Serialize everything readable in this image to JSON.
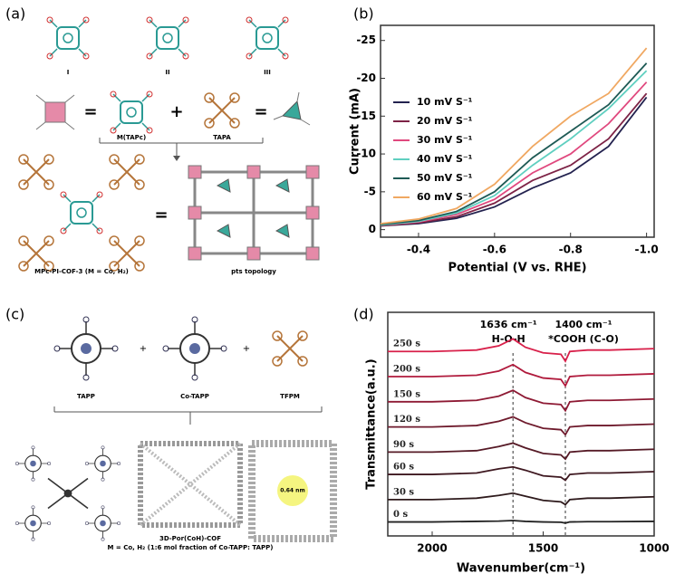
{
  "diagrams": {
    "a": {
      "label": "(a)",
      "monomers": [
        "I",
        "II",
        "III"
      ],
      "eq1": "=",
      "plus": "+",
      "eq2": "=",
      "node1": "M(TAPc)",
      "node2": "TAPA",
      "eq3": "=",
      "product": "MPc-PI-COF-3 (M = Co, H₂)",
      "topology": "pts topology"
    },
    "c": {
      "label": "(c)",
      "monomers": [
        "TAPP",
        "Co-TAPP",
        "TFPM"
      ],
      "plus1": "+",
      "plus2": "+",
      "pore": "0.64 nm",
      "product": "3D-Por(CoH)-COF",
      "note": "M = Co, H₂ (1:6 mol fraction of Co-TAPP: TAPP)"
    }
  },
  "chart_data": [
    {
      "type": "line",
      "panel_label": "(b)",
      "xlabel": "Potential (V vs. RHE)",
      "ylabel": "Current (mA)",
      "x": [
        -0.3,
        -0.4,
        -0.5,
        -0.6,
        -0.7,
        -0.8,
        -0.9,
        -1.0
      ],
      "xlim": [
        -0.3,
        -1.02
      ],
      "xticks": [
        -0.4,
        -0.6,
        -0.8,
        {
          "value": -1,
          "label": "-1.0"
        }
      ],
      "ylim": [
        1,
        -27
      ],
      "yticks": [
        0,
        -5,
        -10,
        -15,
        -20,
        -25
      ],
      "legend": "upper left",
      "series": [
        {
          "name": "10 mV S⁻¹",
          "color": "#23224f",
          "values": [
            -0.5,
            -0.8,
            -1.5,
            -3,
            -5.5,
            -7.5,
            -11,
            -17.5
          ]
        },
        {
          "name": "20 mV S⁻¹",
          "color": "#7d2346",
          "values": [
            -0.5,
            -0.9,
            -1.7,
            -3.5,
            -6.5,
            -8.5,
            -12,
            -18
          ]
        },
        {
          "name": "30 mV S⁻¹",
          "color": "#e0487e",
          "values": [
            -0.6,
            -1,
            -2,
            -4,
            -7.5,
            -10,
            -14,
            -19.5
          ]
        },
        {
          "name": "40 mV S⁻¹",
          "color": "#5fcfc0",
          "values": [
            -0.6,
            -1.1,
            -2.2,
            -4.5,
            -8.5,
            -12,
            -16,
            -21
          ]
        },
        {
          "name": "50 mV S⁻¹",
          "color": "#1e5a55",
          "values": [
            -0.7,
            -1.2,
            -2.4,
            -5,
            -9.5,
            -13,
            -16.5,
            -22
          ]
        },
        {
          "name": "60 mV S⁻¹",
          "color": "#f0a862",
          "values": [
            -0.8,
            -1.4,
            -2.8,
            -6,
            -11,
            -15,
            -18,
            -24
          ]
        }
      ]
    },
    {
      "type": "line",
      "panel_label": "(d)",
      "xlabel": "Wavenumber(cm⁻¹)",
      "ylabel": "Transmittance(a.u.)",
      "x": [
        2200,
        2000,
        1800,
        1700,
        1636,
        1580,
        1500,
        1420,
        1400,
        1380,
        1300,
        1200,
        1000
      ],
      "xlim": [
        2200,
        1000
      ],
      "xticks": [
        2000,
        1500,
        1000
      ],
      "ylim": [
        0,
        8
      ],
      "legend": "inline",
      "vlines": [
        1636,
        1400
      ],
      "annotations": [
        {
          "text": "1636 cm⁻¹",
          "x": 1636
        },
        {
          "text": "H-O-H",
          "x": 1636
        },
        {
          "text": "1400 cm⁻¹",
          "x": 1400
        },
        {
          "text": "*COOH (C-O)",
          "x": 1400
        }
      ],
      "series": [
        {
          "name": "0 s",
          "color": "#222222",
          "values": [
            0.5,
            0.5,
            0.52,
            0.53,
            0.55,
            0.52,
            0.5,
            0.49,
            0.46,
            0.5,
            0.51,
            0.51,
            0.52
          ]
        },
        {
          "name": "30 s",
          "color": "#2e1a1c",
          "values": [
            1.3,
            1.3,
            1.35,
            1.45,
            1.53,
            1.42,
            1.27,
            1.22,
            1.12,
            1.3,
            1.35,
            1.35,
            1.4
          ]
        },
        {
          "name": "60 s",
          "color": "#3e1820",
          "values": [
            2.2,
            2.2,
            2.25,
            2.4,
            2.47,
            2.35,
            2.15,
            2.1,
            1.99,
            2.2,
            2.25,
            2.25,
            2.3
          ]
        },
        {
          "name": "90 s",
          "color": "#561a26",
          "values": [
            3.0,
            3.0,
            3.05,
            3.2,
            3.32,
            3.15,
            2.95,
            2.9,
            2.75,
            3.0,
            3.05,
            3.05,
            3.1
          ]
        },
        {
          "name": "120 s",
          "color": "#6e1a2c",
          "values": [
            3.9,
            3.9,
            3.95,
            4.1,
            4.26,
            4.05,
            3.85,
            3.8,
            3.62,
            3.9,
            3.95,
            3.95,
            4.0
          ]
        },
        {
          "name": "150 s",
          "color": "#8e1a34",
          "values": [
            4.8,
            4.8,
            4.85,
            5.0,
            5.21,
            4.95,
            4.75,
            4.7,
            4.48,
            4.8,
            4.85,
            4.85,
            4.9
          ]
        },
        {
          "name": "200 s",
          "color": "#b01a3c",
          "values": [
            5.7,
            5.7,
            5.75,
            5.9,
            6.13,
            5.85,
            5.65,
            5.6,
            5.37,
            5.7,
            5.75,
            5.75,
            5.8
          ]
        },
        {
          "name": "250 s",
          "color": "#d8204a",
          "values": [
            6.6,
            6.6,
            6.65,
            6.8,
            7.05,
            6.75,
            6.55,
            6.5,
            6.25,
            6.6,
            6.65,
            6.65,
            6.7
          ]
        }
      ]
    }
  ]
}
